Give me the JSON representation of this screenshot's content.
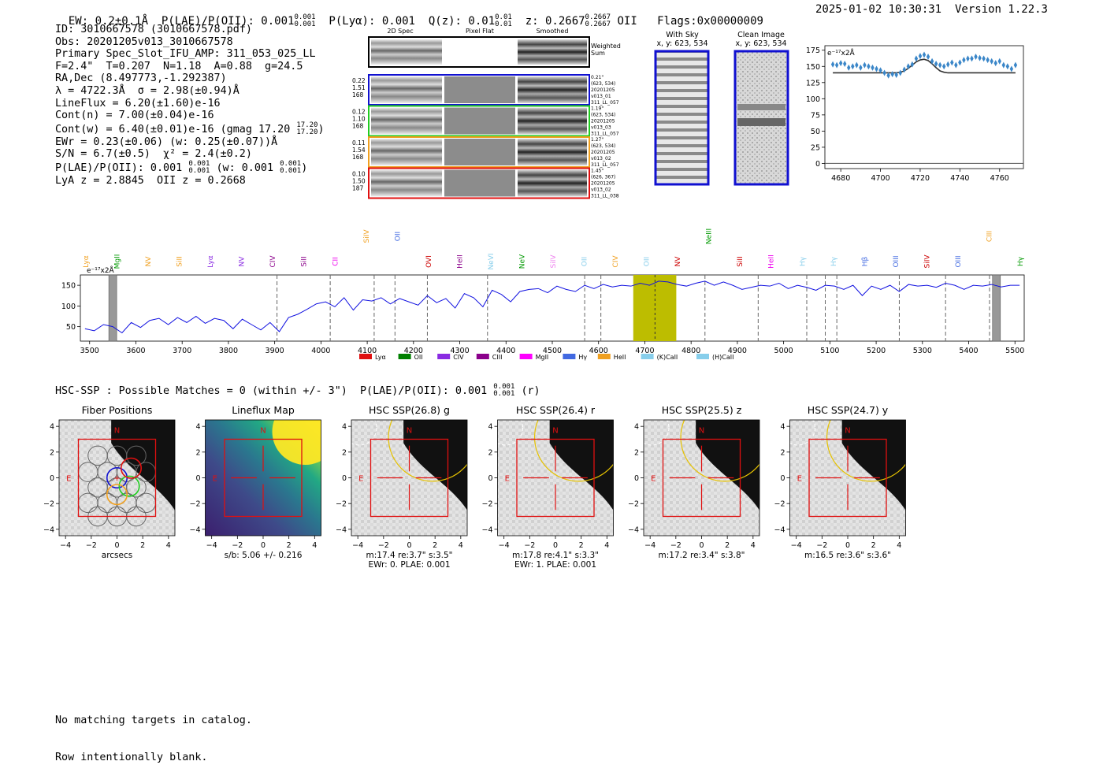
{
  "header": {
    "ew_label": "EW: 0.2±0.1Å",
    "plae_label": "P(LAE)/P(OII): 0.001",
    "plae_sup": "0.001",
    "plae_sub": "0.001",
    "plya_label": "P(Lyα): 0.001",
    "qz_label": "Q(z): 0.01",
    "qz_sup": "0.01",
    "qz_sub": "0.01",
    "z_label": "z: 0.2667",
    "z_sup": "0.2667",
    "z_sub": "0.2667",
    "z_line": "OII",
    "flags": "Flags:0x00000009",
    "datetime": "2025-01-02 10:30:31",
    "version": "Version 1.22.3"
  },
  "info": {
    "id": "ID: 3010667578 (3010667578.pdf)",
    "obs": "Obs: 20201205v013_3010667578",
    "primary": "Primary Spec_Slot_IFU_AMP: 311_053_025_LL",
    "fiber": "F=2.4\"  T=0.207  N=1.18  A=0.88  g=24.5",
    "radec": "RA,Dec (8.497773,-1.292387)",
    "lambda": "λ = 4722.3Å  σ = 2.98(±0.94)Å",
    "lineflux": "LineFlux = 6.20(±1.60)e-16",
    "contn": "Cont(n) = 7.00(±0.04)e-16",
    "contw": "Cont(w) = 6.40(±0.01)e-16 (gmag 17.20",
    "contw_sup": "17.20",
    "contw_sub": "17.20",
    "ewr": "EWr = 0.23(±0.06) (w: 0.25(±0.07))Å",
    "sn": "S/N = 6.7(±0.5)  χ² = 2.4(±0.2)",
    "plae": "P(LAE)/P(OII): 0.001",
    "plae_sup": "0.001",
    "plae_sub": "0.001",
    "plae_w": "(w: 0.001",
    "plae_w_sup": "0.001",
    "plae_w_sub": "0.001",
    "lya": "LyA z = 2.8845  OII z = 0.2668"
  },
  "cutouts": {
    "col_headers": [
      "2D Spec",
      "Pixel Flat",
      "Smoothed"
    ],
    "weighted_sum": "Weighted Sum",
    "rows": [
      {
        "left": [
          "0.22",
          "1.51",
          "168"
        ],
        "right": [
          "0.21\"",
          "(623, 534)",
          "20201205",
          "v013_01",
          "311_LL_057"
        ],
        "color": "#1010d0"
      },
      {
        "left": [
          "0.12",
          "1.10",
          "168"
        ],
        "right": [
          "1.19\"",
          "(623, 534)",
          "20201205",
          "v013_03",
          "311_LL_057"
        ],
        "color": "#22cc22"
      },
      {
        "left": [
          "0.11",
          "1.54",
          "168"
        ],
        "right": [
          "1.27\"",
          "(623, 534)",
          "20201205",
          "v013_02",
          "311_LL_057"
        ],
        "color": "#f0a020"
      },
      {
        "left": [
          "0.10",
          "1.50",
          "187"
        ],
        "right": [
          "1.45\"",
          "(626, 367)",
          "20201205",
          "v013_02",
          "311_LL_038"
        ],
        "color": "#e01010"
      }
    ],
    "with_sky_title": "With Sky",
    "with_sky_coords": "x, y: 623, 534",
    "clean_title": "Clean Image",
    "clean_coords": "x, y: 623, 534"
  },
  "line_fit": {
    "unit_label": "e⁻¹⁷x2Å",
    "x_ticks": [
      "4680",
      "4700",
      "4720",
      "4740",
      "4760"
    ],
    "y_ticks": [
      "0",
      "25",
      "50",
      "75",
      "100",
      "125",
      "150",
      "175"
    ]
  },
  "full_spectrum": {
    "unit_label": "e⁻¹⁷x2Å",
    "x_ticks": [
      "3500",
      "3600",
      "3700",
      "3800",
      "3900",
      "4000",
      "4100",
      "4200",
      "4300",
      "4400",
      "4500",
      "4600",
      "4700",
      "4800",
      "4900",
      "5000",
      "5100",
      "5200",
      "5300",
      "5400",
      "5500"
    ],
    "y_ticks": [
      "50",
      "100",
      "150"
    ],
    "line_labels": [
      {
        "text": "Lyα",
        "color": "#f0a020"
      },
      {
        "text": "MgII",
        "color": "#009900"
      },
      {
        "text": "NV",
        "color": "#f0a020"
      },
      {
        "text": "SiII",
        "color": "#f0a020"
      },
      {
        "text": "Lyα",
        "color": "#8a2be2"
      },
      {
        "text": "NV",
        "color": "#8a2be2"
      },
      {
        "text": "CIV",
        "color": "#8b008b"
      },
      {
        "text": "SiII",
        "color": "#8b008b"
      },
      {
        "text": "CII",
        "color": "#ee00ee"
      },
      {
        "text": "SiIV",
        "color": "#f0a020"
      },
      {
        "text": "OII",
        "color": "#4169e1"
      },
      {
        "text": "OVI",
        "color": "#cc0000"
      },
      {
        "text": "HeII",
        "color": "#8b008b"
      },
      {
        "text": "NeVI",
        "color": "#87ceeb"
      },
      {
        "text": "NeV",
        "color": "#009900"
      },
      {
        "text": "SiIV",
        "color": "#ee82ee"
      },
      {
        "text": "OII",
        "color": "#87ceeb"
      },
      {
        "text": "CIV",
        "color": "#f0a020"
      },
      {
        "text": "OII",
        "color": "#87ceeb"
      },
      {
        "text": "NV",
        "color": "#cc0000"
      },
      {
        "text": "NeIII",
        "color": "#009900"
      },
      {
        "text": "SiII",
        "color": "#cc0000"
      },
      {
        "text": "HeII",
        "color": "#ee00ee"
      },
      {
        "text": "Hγ",
        "color": "#87ceeb"
      },
      {
        "text": "Hγ",
        "color": "#87ceeb"
      },
      {
        "text": "Hβ",
        "color": "#4169e1"
      },
      {
        "text": "OIII",
        "color": "#4169e1"
      },
      {
        "text": "SiIV",
        "color": "#cc0000"
      },
      {
        "text": "OIII",
        "color": "#4169e1"
      },
      {
        "text": "CIII",
        "color": "#f0a020"
      },
      {
        "text": "Hγ",
        "color": "#009900"
      }
    ],
    "legend": [
      {
        "label": "Lyα",
        "color": "#e01010"
      },
      {
        "label": "OII",
        "color": "#008000"
      },
      {
        "label": "CIV",
        "color": "#8a2be2"
      },
      {
        "label": "CIII",
        "color": "#8b008b"
      },
      {
        "label": "MgII",
        "color": "#ff00ff"
      },
      {
        "label": "Hγ",
        "color": "#4169e1"
      },
      {
        "label": "HeII",
        "color": "#f0a020"
      },
      {
        "label": "(K)CaII",
        "color": "#87ceeb"
      },
      {
        "label": "(H)CaII",
        "color": "#87ceeb"
      }
    ]
  },
  "hsc": {
    "title": "HSC-SSP : Possible Matches = 0 (within +/- 3\")  P(LAE)/P(OII): 0.001",
    "title_sup": "0.001",
    "title_sub": "0.001",
    "title_band": "(r)",
    "axis_ticks": [
      "−4",
      "−2",
      "0",
      "2",
      "4"
    ],
    "north": "N",
    "east": "E",
    "panels": [
      {
        "title": "Fiber Positions",
        "caption1": "arcsecs",
        "caption2": ""
      },
      {
        "title": "Lineflux Map",
        "caption1": "s/b: 5.06 +/- 0.216",
        "caption2": ""
      },
      {
        "title": "HSC SSP(26.8) g",
        "caption1": "m:17.4  re:3.7\"  s:3.5\"",
        "caption2": "EWr: 0. PLAE: 0.001"
      },
      {
        "title": "HSC SSP(26.4) r",
        "caption1": "m:17.8  re:4.1\"  s:3.3\"",
        "caption2": "EWr: 1. PLAE: 0.001"
      },
      {
        "title": "HSC SSP(25.5) z",
        "caption1": "m:17.2  re:3.4\"  s:3.8\"",
        "caption2": ""
      },
      {
        "title": "HSC SSP(24.7) y",
        "caption1": "m:16.5  re:3.6\"  s:3.6\"",
        "caption2": ""
      }
    ]
  },
  "footer": {
    "line1": "No matching targets in catalog.",
    "line2": "Row intentionally blank."
  },
  "chart_data": [
    {
      "type": "line",
      "title": "",
      "xlabel": "",
      "ylabel": "e⁻¹⁷x2Å",
      "xlim": [
        4672,
        4772
      ],
      "ylim": [
        -8,
        182
      ],
      "series": [
        {
          "style": "markers",
          "x": [
            4676,
            4678,
            4680,
            4682,
            4684,
            4686,
            4688,
            4690,
            4692,
            4694,
            4696,
            4698,
            4700,
            4702,
            4704,
            4706,
            4708,
            4710,
            4712,
            4714,
            4716,
            4718,
            4720,
            4722,
            4724,
            4726,
            4728,
            4730,
            4732,
            4734,
            4736,
            4738,
            4740,
            4742,
            4744,
            4746,
            4748,
            4750,
            4752,
            4754,
            4756,
            4758,
            4760,
            4762,
            4764,
            4766,
            4768
          ],
          "y": [
            153,
            152,
            155,
            154,
            148,
            150,
            152,
            148,
            152,
            150,
            148,
            146,
            144,
            140,
            136,
            138,
            137,
            140,
            145,
            150,
            153,
            162,
            166,
            168,
            165,
            158,
            154,
            152,
            150,
            153,
            156,
            152,
            156,
            160,
            162,
            162,
            165,
            163,
            162,
            160,
            158,
            155,
            158,
            152,
            150,
            146,
            152
          ]
        },
        {
          "style": "fit",
          "x": [
            4676,
            4680,
            4684,
            4688,
            4692,
            4696,
            4700,
            4704,
            4708,
            4710,
            4712,
            4714,
            4716,
            4718,
            4720,
            4722,
            4724,
            4726,
            4728,
            4730,
            4732,
            4734,
            4738,
            4742,
            4746,
            4750,
            4754,
            4758,
            4762,
            4766,
            4768
          ],
          "y": [
            140,
            140,
            140,
            140,
            140,
            140,
            140,
            140,
            140,
            141,
            143,
            147,
            152,
            157,
            160,
            161,
            159,
            154,
            148,
            143,
            141,
            140,
            140,
            140,
            140,
            140,
            140,
            140,
            140,
            140,
            140
          ]
        }
      ]
    },
    {
      "type": "line",
      "title": "",
      "xlabel": "",
      "ylabel": "e⁻¹⁷x2Å",
      "xlim": [
        3480,
        5520
      ],
      "ylim": [
        15,
        175
      ],
      "series": [
        {
          "x": [
            3490,
            3510,
            3530,
            3550,
            3570,
            3590,
            3610,
            3630,
            3650,
            3670,
            3690,
            3710,
            3730,
            3750,
            3770,
            3790,
            3810,
            3830,
            3850,
            3870,
            3890,
            3910,
            3930,
            3950,
            3970,
            3990,
            4010,
            4030,
            4050,
            4070,
            4090,
            4110,
            4130,
            4150,
            4170,
            4190,
            4210,
            4230,
            4250,
            4270,
            4290,
            4310,
            4330,
            4350,
            4370,
            4390,
            4410,
            4430,
            4450,
            4470,
            4490,
            4510,
            4530,
            4550,
            4570,
            4590,
            4610,
            4630,
            4650,
            4670,
            4690,
            4710,
            4730,
            4750,
            4770,
            4790,
            4810,
            4830,
            4850,
            4870,
            4890,
            4910,
            4930,
            4950,
            4970,
            4990,
            5010,
            5030,
            5050,
            5070,
            5090,
            5110,
            5130,
            5150,
            5170,
            5190,
            5210,
            5230,
            5250,
            5270,
            5290,
            5310,
            5330,
            5350,
            5370,
            5390,
            5410,
            5430,
            5450,
            5470,
            5490,
            5510
          ],
          "y": [
            45,
            40,
            55,
            50,
            35,
            60,
            48,
            65,
            70,
            55,
            72,
            60,
            75,
            58,
            70,
            65,
            45,
            68,
            55,
            42,
            60,
            38,
            72,
            80,
            92,
            105,
            110,
            98,
            120,
            90,
            115,
            112,
            120,
            105,
            118,
            110,
            102,
            125,
            108,
            118,
            95,
            130,
            120,
            98,
            138,
            128,
            110,
            135,
            140,
            142,
            132,
            148,
            140,
            135,
            150,
            142,
            152,
            146,
            150,
            148,
            155,
            150,
            160,
            158,
            152,
            148,
            155,
            160,
            150,
            158,
            150,
            140,
            145,
            150,
            148,
            155,
            142,
            150,
            145,
            138,
            150,
            148,
            140,
            150,
            125,
            148,
            140,
            150,
            135,
            152,
            148,
            150,
            145,
            155,
            150,
            140,
            150,
            148,
            152,
            146,
            150,
            150
          ]
        }
      ],
      "shaded_band": [
        4675,
        4768
      ],
      "marked_line": 4722
    }
  ]
}
